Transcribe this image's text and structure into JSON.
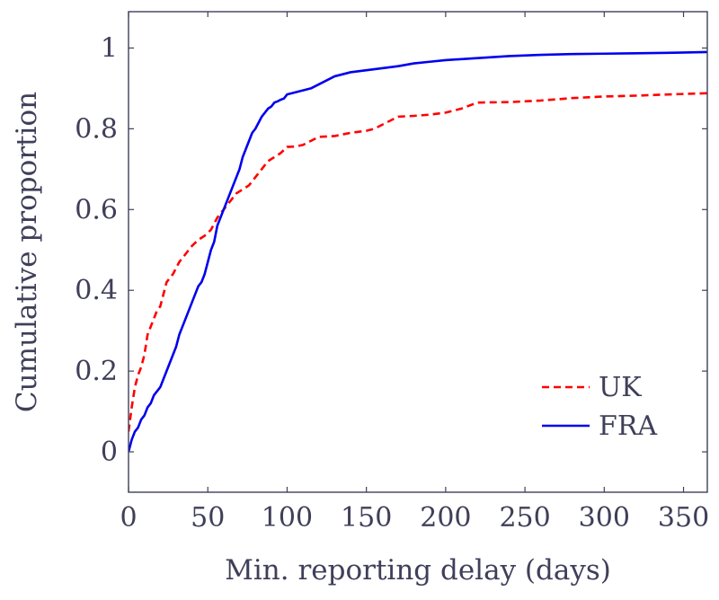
{
  "chart_data": {
    "type": "line",
    "title": "",
    "xlabel": "Min. reporting delay (days)",
    "ylabel": "Cumulative proportion",
    "xlim": [
      0,
      365
    ],
    "ylim": [
      -0.1,
      1.09
    ],
    "xticks": [
      0,
      50,
      100,
      150,
      200,
      250,
      300,
      350
    ],
    "yticks": [
      0,
      0.2,
      0.4,
      0.6,
      0.8,
      1
    ],
    "xtick_labels": [
      "0",
      "50",
      "100",
      "150",
      "200",
      "250",
      "300",
      "350"
    ],
    "ytick_labels": [
      "0",
      "0.2",
      "0.4",
      "0.6",
      "0.8",
      "1"
    ],
    "grid": false,
    "legend_position": "bottom-right",
    "series": [
      {
        "name": "UK",
        "color": "#ff0000",
        "style": "dashed",
        "x": [
          0,
          1,
          2,
          4,
          6,
          8,
          10,
          12,
          14,
          16,
          18,
          20,
          24,
          28,
          32,
          36,
          40,
          44,
          48,
          52,
          56,
          60,
          64,
          68,
          72,
          76,
          80,
          84,
          88,
          92,
          96,
          100,
          105,
          110,
          115,
          120,
          130,
          140,
          150,
          155,
          160,
          165,
          170,
          180,
          190,
          200,
          210,
          220,
          240,
          260,
          280,
          300,
          320,
          340,
          365
        ],
        "y": [
          0.05,
          0.08,
          0.11,
          0.16,
          0.19,
          0.21,
          0.24,
          0.29,
          0.31,
          0.33,
          0.35,
          0.36,
          0.42,
          0.44,
          0.47,
          0.49,
          0.51,
          0.525,
          0.535,
          0.55,
          0.58,
          0.6,
          0.62,
          0.64,
          0.65,
          0.66,
          0.68,
          0.7,
          0.72,
          0.73,
          0.74,
          0.755,
          0.756,
          0.76,
          0.77,
          0.78,
          0.782,
          0.79,
          0.795,
          0.8,
          0.81,
          0.82,
          0.83,
          0.832,
          0.835,
          0.84,
          0.85,
          0.865,
          0.866,
          0.87,
          0.876,
          0.88,
          0.882,
          0.885,
          0.888
        ]
      },
      {
        "name": "FRA",
        "color": "#0000ee",
        "style": "solid",
        "x": [
          0,
          2,
          4,
          6,
          8,
          10,
          12,
          14,
          16,
          18,
          20,
          22,
          24,
          26,
          28,
          30,
          32,
          34,
          36,
          38,
          40,
          42,
          44,
          46,
          48,
          50,
          52,
          54,
          56,
          58,
          60,
          62,
          64,
          66,
          68,
          70,
          72,
          74,
          76,
          78,
          80,
          82,
          84,
          86,
          88,
          90,
          92,
          94,
          96,
          98,
          100,
          105,
          110,
          115,
          120,
          125,
          130,
          140,
          150,
          160,
          170,
          180,
          190,
          200,
          220,
          240,
          260,
          280,
          300,
          320,
          340,
          365
        ],
        "y": [
          0.0,
          0.03,
          0.05,
          0.06,
          0.08,
          0.09,
          0.11,
          0.12,
          0.14,
          0.15,
          0.16,
          0.18,
          0.2,
          0.22,
          0.24,
          0.26,
          0.29,
          0.31,
          0.33,
          0.35,
          0.37,
          0.39,
          0.41,
          0.42,
          0.44,
          0.47,
          0.5,
          0.52,
          0.56,
          0.58,
          0.6,
          0.62,
          0.64,
          0.66,
          0.68,
          0.7,
          0.73,
          0.75,
          0.77,
          0.79,
          0.8,
          0.815,
          0.83,
          0.84,
          0.85,
          0.855,
          0.865,
          0.868,
          0.872,
          0.875,
          0.885,
          0.89,
          0.895,
          0.9,
          0.91,
          0.92,
          0.93,
          0.94,
          0.945,
          0.95,
          0.955,
          0.962,
          0.966,
          0.97,
          0.975,
          0.98,
          0.983,
          0.985,
          0.986,
          0.987,
          0.988,
          0.99
        ]
      }
    ]
  }
}
